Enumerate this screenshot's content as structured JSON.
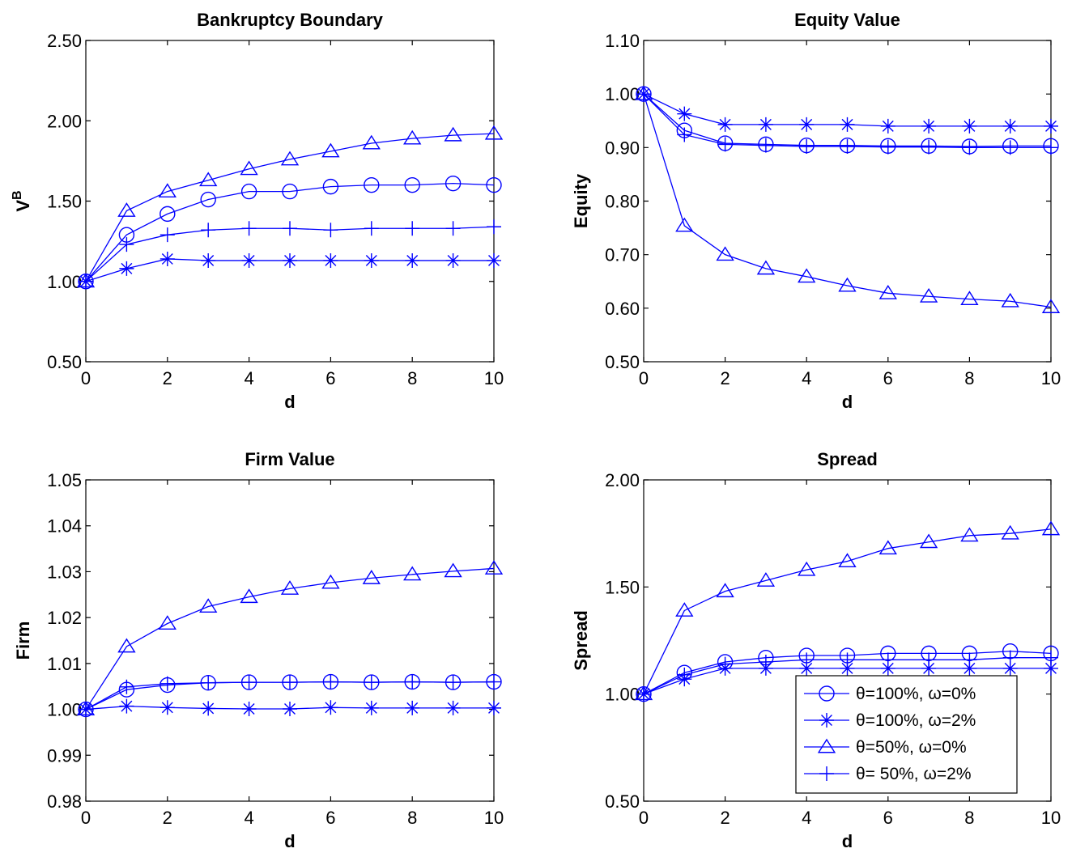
{
  "colors": {
    "series": "#0000ff",
    "axes": "#000000",
    "background": "#ffffff"
  },
  "legend": {
    "location": "bottom-right of Spread panel",
    "entries": [
      {
        "marker": "circle",
        "label": "θ=100%, ω=0%"
      },
      {
        "marker": "asterisk",
        "label": "θ=100%, ω=2%"
      },
      {
        "marker": "triangle",
        "label": "θ=50%, ω=0%"
      },
      {
        "marker": "plus",
        "label": "θ= 50%, ω=2%"
      }
    ]
  },
  "chart_data": [
    {
      "type": "line",
      "title": "Bankruptcy Boundary",
      "xlabel": "d",
      "ylabel": "V",
      "ylabel_superscript": "B",
      "xlim": [
        0,
        10
      ],
      "ylim": [
        0.5,
        2.5
      ],
      "xticks": [
        "0",
        "2",
        "4",
        "6",
        "8",
        "10"
      ],
      "yticks": [
        "0.50",
        "1.00",
        "1.50",
        "2.00",
        "2.50"
      ],
      "grid": false,
      "x": [
        0,
        1,
        2,
        3,
        4,
        5,
        6,
        7,
        8,
        9,
        10
      ],
      "series": [
        {
          "marker": "circle",
          "values": [
            1.0,
            1.29,
            1.42,
            1.51,
            1.56,
            1.56,
            1.59,
            1.6,
            1.6,
            1.61,
            1.6
          ]
        },
        {
          "marker": "asterisk",
          "values": [
            1.0,
            1.08,
            1.14,
            1.13,
            1.13,
            1.13,
            1.13,
            1.13,
            1.13,
            1.13,
            1.13
          ]
        },
        {
          "marker": "triangle",
          "values": [
            1.0,
            1.44,
            1.56,
            1.63,
            1.7,
            1.76,
            1.81,
            1.86,
            1.89,
            1.91,
            1.92
          ]
        },
        {
          "marker": "plus",
          "values": [
            1.0,
            1.23,
            1.29,
            1.32,
            1.33,
            1.33,
            1.32,
            1.33,
            1.33,
            1.33,
            1.34
          ]
        }
      ]
    },
    {
      "type": "line",
      "title": "Equity Value",
      "xlabel": "d",
      "ylabel": "Equity",
      "xlim": [
        0,
        10
      ],
      "ylim": [
        0.5,
        1.1
      ],
      "xticks": [
        "0",
        "2",
        "4",
        "6",
        "8",
        "10"
      ],
      "yticks": [
        "0.50",
        "0.60",
        "0.70",
        "0.80",
        "0.90",
        "1.00",
        "1.10"
      ],
      "grid": false,
      "x": [
        0,
        1,
        2,
        3,
        4,
        5,
        6,
        7,
        8,
        9,
        10
      ],
      "series": [
        {
          "marker": "circle",
          "values": [
            1.0,
            0.932,
            0.908,
            0.906,
            0.904,
            0.904,
            0.903,
            0.903,
            0.902,
            0.903,
            0.903
          ]
        },
        {
          "marker": "asterisk",
          "values": [
            1.0,
            0.963,
            0.943,
            0.943,
            0.943,
            0.943,
            0.94,
            0.94,
            0.94,
            0.94,
            0.94
          ]
        },
        {
          "marker": "triangle",
          "values": [
            1.0,
            0.754,
            0.7,
            0.674,
            0.659,
            0.642,
            0.628,
            0.622,
            0.617,
            0.613,
            0.602
          ]
        },
        {
          "marker": "plus",
          "values": [
            1.0,
            0.924,
            0.906,
            0.904,
            0.902,
            0.902,
            0.901,
            0.901,
            0.9,
            0.9,
            0.9
          ]
        }
      ]
    },
    {
      "type": "line",
      "title": "Firm Value",
      "xlabel": "d",
      "ylabel": "Firm",
      "xlim": [
        0,
        10
      ],
      "ylim": [
        0.98,
        1.05
      ],
      "xticks": [
        "0",
        "2",
        "4",
        "6",
        "8",
        "10"
      ],
      "yticks": [
        "0.98",
        "0.99",
        "1.00",
        "1.01",
        "1.02",
        "1.03",
        "1.04",
        "1.05"
      ],
      "grid": false,
      "x": [
        0,
        1,
        2,
        3,
        4,
        5,
        6,
        7,
        8,
        9,
        10
      ],
      "series": [
        {
          "marker": "circle",
          "values": [
            1.0,
            1.0043,
            1.0053,
            1.0058,
            1.0059,
            1.0059,
            1.006,
            1.0059,
            1.006,
            1.0059,
            1.006
          ]
        },
        {
          "marker": "asterisk",
          "values": [
            1.0,
            1.0007,
            1.0004,
            1.0002,
            1.0001,
            1.0001,
            1.0004,
            1.0003,
            1.0003,
            1.0003,
            1.0003
          ]
        },
        {
          "marker": "triangle",
          "values": [
            1.0,
            1.0137,
            1.0187,
            1.0224,
            1.0245,
            1.0263,
            1.0276,
            1.0286,
            1.0294,
            1.0301,
            1.0307
          ]
        },
        {
          "marker": "plus",
          "values": [
            1.0,
            1.0049,
            1.0056,
            1.0058,
            1.0059,
            1.0059,
            1.006,
            1.0059,
            1.006,
            1.0059,
            1.006
          ]
        }
      ]
    },
    {
      "type": "line",
      "title": "Spread",
      "xlabel": "d",
      "ylabel": "Spread",
      "xlim": [
        0,
        10
      ],
      "ylim": [
        0.5,
        2.0
      ],
      "xticks": [
        "0",
        "2",
        "4",
        "6",
        "8",
        "10"
      ],
      "yticks": [
        "0.50",
        "1.00",
        "1.50",
        "2.00"
      ],
      "grid": false,
      "x": [
        0,
        1,
        2,
        3,
        4,
        5,
        6,
        7,
        8,
        9,
        10
      ],
      "series": [
        {
          "marker": "circle",
          "values": [
            1.0,
            1.1,
            1.15,
            1.17,
            1.18,
            1.18,
            1.19,
            1.19,
            1.19,
            1.2,
            1.19
          ]
        },
        {
          "marker": "asterisk",
          "values": [
            1.0,
            1.07,
            1.12,
            1.12,
            1.12,
            1.12,
            1.12,
            1.12,
            1.12,
            1.12,
            1.12
          ]
        },
        {
          "marker": "triangle",
          "values": [
            1.0,
            1.39,
            1.48,
            1.53,
            1.58,
            1.62,
            1.68,
            1.71,
            1.74,
            1.75,
            1.77
          ]
        },
        {
          "marker": "plus",
          "values": [
            1.0,
            1.09,
            1.14,
            1.15,
            1.16,
            1.16,
            1.16,
            1.16,
            1.16,
            1.17,
            1.17
          ]
        }
      ]
    }
  ]
}
